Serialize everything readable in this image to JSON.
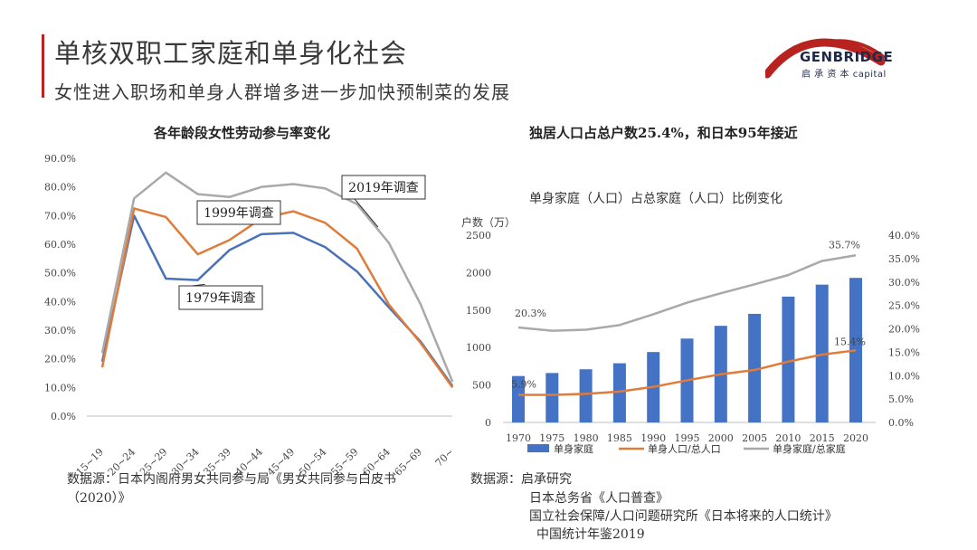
{
  "header": {
    "title": "单核双职工家庭和单身化社会",
    "subtitle": "女性进入职场和单身人群增多进一步加快预制菜的发展"
  },
  "logo": {
    "name": "GENBRIDGE",
    "sub": "启 承 资 本 capital"
  },
  "left_source": {
    "line1": "数据源：日本内阁府男女共同参与局《男女共同参与白皮书",
    "line2": "（2020）》"
  },
  "right_source": {
    "line1": "数据源：启承研究",
    "line2": "日本总务省《人口普查》",
    "line3": "国立社会保障/人口问题研究所《日本将来的人口统计》",
    "line4": "中国统计年鉴2019"
  },
  "chart_data": [
    {
      "type": "line",
      "title": "各年龄段女性劳动参与率变化",
      "categories": [
        "15~19",
        "20~24",
        "25~29",
        "30~34",
        "35~39",
        "40~44",
        "45~49",
        "50~54",
        "55~59",
        "60~64",
        "65~69",
        "70~"
      ],
      "ylim": [
        0,
        90
      ],
      "yticks": [
        "0.0%",
        "10.0%",
        "20.0%",
        "30.0%",
        "40.0%",
        "50.0%",
        "60.0%",
        "70.0%",
        "80.0%",
        "90.0%"
      ],
      "series": [
        {
          "name": "1979年调查",
          "color": "#4a72b8",
          "values": [
            19,
            70,
            48,
            47.5,
            58,
            63.5,
            64,
            59,
            50.5,
            38,
            26,
            10.5
          ]
        },
        {
          "name": "1999年调查",
          "color": "#e07b39",
          "values": [
            17,
            72.5,
            69.5,
            56.5,
            61.5,
            69,
            71.5,
            67.5,
            58.5,
            39,
            25.5,
            10
          ]
        },
        {
          "name": "2019年调查",
          "color": "#a9a9a9",
          "values": [
            22,
            76,
            85,
            77.5,
            76.5,
            80,
            81,
            79.5,
            74,
            60.5,
            39,
            12
          ]
        }
      ],
      "grid": false,
      "legend": "callout labels"
    },
    {
      "type": "bar+line",
      "title": "独居人口占总户数25.4%，和日本95年接近",
      "subtitle": "单身家庭（人口）占总家庭（人口）比例变化",
      "categories": [
        "1970",
        "1975",
        "1980",
        "1985",
        "1990",
        "1995",
        "2000",
        "2005",
        "2010",
        "2015",
        "2020"
      ],
      "y_left_label": "户数（万）",
      "y_left_lim": [
        0,
        2500
      ],
      "y_left_ticks": [
        "0",
        "500",
        "1000",
        "1500",
        "2000",
        "2500"
      ],
      "y_right_lim": [
        0,
        40
      ],
      "y_right_ticks": [
        "0.0%",
        "5.0%",
        "10.0%",
        "15.0%",
        "20.0%",
        "25.0%",
        "30.0%",
        "35.0%",
        "40.0%"
      ],
      "series": [
        {
          "name": "单身家庭",
          "type": "bar",
          "axis": "left",
          "color": "#4472c4",
          "values": [
            620,
            660,
            710,
            790,
            940,
            1120,
            1290,
            1450,
            1680,
            1840,
            1930
          ]
        },
        {
          "name": "单身人口/总人口",
          "type": "line",
          "axis": "right",
          "color": "#e07b39",
          "values": [
            5.9,
            5.9,
            6.1,
            6.6,
            7.6,
            9.0,
            10.3,
            11.2,
            13.0,
            14.5,
            15.4
          ]
        },
        {
          "name": "单身家庭/总家庭",
          "type": "line",
          "axis": "right",
          "color": "#a9a9a9",
          "values": [
            20.3,
            19.6,
            19.8,
            20.8,
            23.1,
            25.6,
            27.6,
            29.5,
            31.5,
            34.5,
            35.7
          ]
        }
      ],
      "annotations": [
        "20.3%",
        "35.7%",
        "5.9%",
        "15.4%"
      ],
      "legend": "bottom"
    }
  ]
}
